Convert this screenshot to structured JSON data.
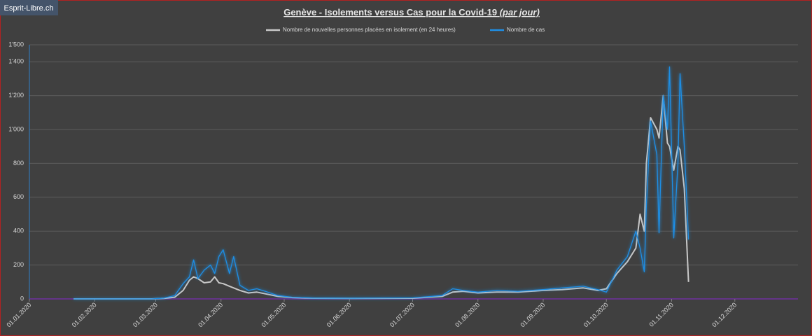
{
  "chart_data": {
    "type": "line",
    "watermark": "Esprit-Libre.ch",
    "title": "Genève - Isolements versus Cas pour la Covid-19",
    "title_suffix": "(par jour)",
    "x": [
      "22.01.2020",
      "28.02.2020",
      "05.03.2020",
      "10.03.2020",
      "14.03.2020",
      "17.03.2020",
      "19.03.2020",
      "21.03.2020",
      "24.03.2020",
      "27.03.2020",
      "29.03.2020",
      "31.03.2020",
      "02.04.2020",
      "05.04.2020",
      "07.04.2020",
      "10.04.2020",
      "14.04.2020",
      "18.04.2020",
      "22.04.2020",
      "28.04.2020",
      "05.05.2020",
      "15.05.2020",
      "01.06.2020",
      "01.07.2020",
      "15.07.2020",
      "20.07.2020",
      "25.07.2020",
      "01.08.2020",
      "10.08.2020",
      "20.08.2020",
      "01.09.2020",
      "10.09.2020",
      "20.09.2020",
      "27.09.2020",
      "01.10.2020",
      "06.10.2020",
      "11.10.2020",
      "15.10.2020",
      "17.10.2020",
      "19.10.2020",
      "20.10.2020",
      "22.10.2020",
      "25.10.2020",
      "26.10.2020",
      "28.10.2020",
      "30.10.2020",
      "31.10.2020",
      "02.11.2020",
      "04.11.2020",
      "05.11.2020",
      "07.11.2020",
      "09.11.2020"
    ],
    "series": [
      {
        "name": "Nombre de nouvelles personnes placées en isolement (en 24 heures)",
        "color": "#c8c8c8",
        "values": [
          0,
          0,
          3,
          10,
          50,
          110,
          130,
          120,
          95,
          100,
          130,
          95,
          90,
          75,
          65,
          50,
          35,
          40,
          30,
          15,
          8,
          4,
          3,
          4,
          15,
          40,
          45,
          35,
          40,
          40,
          50,
          55,
          65,
          50,
          60,
          150,
          220,
          300,
          500,
          400,
          800,
          1070,
          1000,
          950,
          1200,
          920,
          900,
          760,
          900,
          880,
          650,
          100
        ]
      },
      {
        "name": "Nombre de cas",
        "color": "#1f8fe6",
        "values": [
          0,
          0,
          5,
          20,
          90,
          130,
          230,
          120,
          170,
          200,
          150,
          250,
          290,
          150,
          250,
          80,
          50,
          60,
          45,
          20,
          10,
          5,
          4,
          6,
          20,
          60,
          50,
          40,
          50,
          45,
          55,
          65,
          75,
          55,
          40,
          170,
          250,
          400,
          300,
          160,
          550,
          1050,
          850,
          390,
          1200,
          1000,
          1370,
          360,
          800,
          1330,
          900,
          350
        ]
      }
    ],
    "xlim": [
      "01.01.2020",
      "31.12.2020"
    ],
    "xticks": [
      "01.01.2020",
      "01.02.2020",
      "01.03.2020",
      "01.04.2020",
      "01.05.2020",
      "01.06.2020",
      "01.07.2020",
      "01.08.2020",
      "01.09.2020",
      "01.10.2020",
      "01.11.2020",
      "01.12.2020"
    ],
    "ylim": [
      0,
      1500
    ],
    "yticks": [
      0,
      200,
      400,
      600,
      800,
      {
        "value": 1000,
        "label": "1'000"
      },
      {
        "value": 1200,
        "label": "1'200"
      },
      {
        "value": 1400,
        "label": "1'400"
      },
      {
        "value": 1500,
        "label": "1'500"
      }
    ],
    "grid": true,
    "legend": "top"
  }
}
